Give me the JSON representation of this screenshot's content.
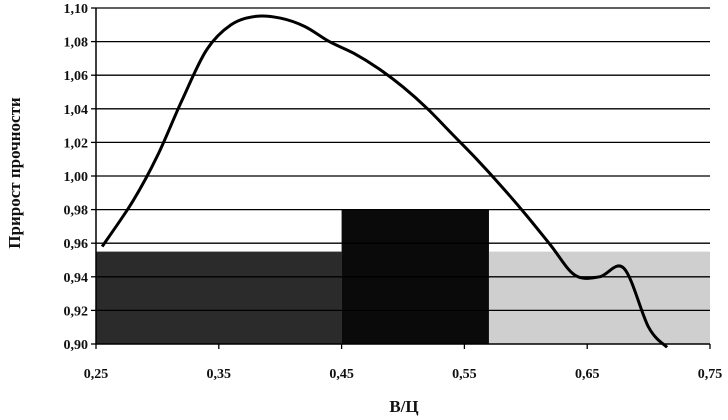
{
  "chart_data": {
    "type": "line",
    "title": "",
    "xlabel": "В/Ц",
    "ylabel": "Прирост прочности",
    "xlim": [
      0.25,
      0.75
    ],
    "ylim": [
      0.9,
      1.1
    ],
    "grid": "horizontal",
    "x_ticks": [
      {
        "value": 0.25,
        "label": "0,25"
      },
      {
        "value": 0.35,
        "label": "0,35"
      },
      {
        "value": 0.45,
        "label": "0,45"
      },
      {
        "value": 0.55,
        "label": "0,55"
      },
      {
        "value": 0.65,
        "label": "0,65"
      },
      {
        "value": 0.75,
        "label": "0,75"
      }
    ],
    "y_ticks": [
      {
        "value": 0.9,
        "label": "0,90"
      },
      {
        "value": 0.92,
        "label": "0,92"
      },
      {
        "value": 0.94,
        "label": "0,94"
      },
      {
        "value": 0.96,
        "label": "0,96"
      },
      {
        "value": 0.98,
        "label": "0,98"
      },
      {
        "value": 1.0,
        "label": "1,00"
      },
      {
        "value": 1.02,
        "label": "1,02"
      },
      {
        "value": 1.04,
        "label": "1,04"
      },
      {
        "value": 1.06,
        "label": "1,06"
      },
      {
        "value": 1.08,
        "label": "1,08"
      },
      {
        "value": 1.1,
        "label": "1,10"
      }
    ],
    "bars": [
      {
        "x0": 0.25,
        "x1": 0.45,
        "value": 0.955,
        "fill": "#2b2b2b"
      },
      {
        "x0": 0.45,
        "x1": 0.57,
        "value": 0.98,
        "fill": "#0a0a0a"
      },
      {
        "x0": 0.57,
        "x1": 0.75,
        "value": 0.955,
        "fill": "#cfcfcf"
      }
    ],
    "curve": {
      "color": "#000000",
      "points": [
        [
          0.255,
          0.958
        ],
        [
          0.28,
          0.985
        ],
        [
          0.3,
          1.012
        ],
        [
          0.32,
          1.045
        ],
        [
          0.34,
          1.075
        ],
        [
          0.36,
          1.09
        ],
        [
          0.38,
          1.095
        ],
        [
          0.4,
          1.094
        ],
        [
          0.42,
          1.089
        ],
        [
          0.44,
          1.08
        ],
        [
          0.46,
          1.073
        ],
        [
          0.48,
          1.064
        ],
        [
          0.5,
          1.053
        ],
        [
          0.52,
          1.04
        ],
        [
          0.54,
          1.025
        ],
        [
          0.56,
          1.01
        ],
        [
          0.58,
          0.994
        ],
        [
          0.6,
          0.977
        ],
        [
          0.62,
          0.959
        ],
        [
          0.64,
          0.941
        ],
        [
          0.66,
          0.94
        ],
        [
          0.68,
          0.945
        ],
        [
          0.7,
          0.91
        ],
        [
          0.715,
          0.898
        ]
      ]
    }
  }
}
